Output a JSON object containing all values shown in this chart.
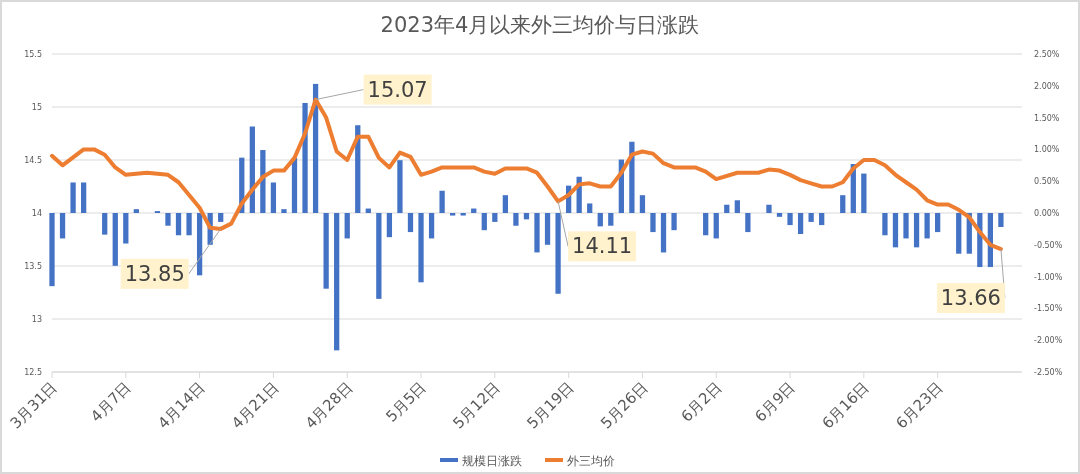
{
  "chart_data": {
    "type": "bar",
    "title": "2023年4月以来外三均价与日涨跌",
    "x": [
      "2023-03-31",
      "2023-04-01",
      "2023-04-02",
      "2023-04-03",
      "2023-04-04",
      "2023-04-05",
      "2023-04-06",
      "2023-04-07",
      "2023-04-08",
      "2023-04-09",
      "2023-04-10",
      "2023-04-11",
      "2023-04-12",
      "2023-04-13",
      "2023-04-14",
      "2023-04-15",
      "2023-04-16",
      "2023-04-17",
      "2023-04-18",
      "2023-04-19",
      "2023-04-20",
      "2023-04-21",
      "2023-04-22",
      "2023-04-23",
      "2023-04-24",
      "2023-04-25",
      "2023-04-26",
      "2023-04-27",
      "2023-04-28",
      "2023-04-29",
      "2023-04-30",
      "2023-05-01",
      "2023-05-02",
      "2023-05-03",
      "2023-05-04",
      "2023-05-05",
      "2023-05-06",
      "2023-05-07",
      "2023-05-08",
      "2023-05-09",
      "2023-05-10",
      "2023-05-11",
      "2023-05-12",
      "2023-05-13",
      "2023-05-14",
      "2023-05-15",
      "2023-05-16",
      "2023-05-17",
      "2023-05-18",
      "2023-05-19",
      "2023-05-20",
      "2023-05-21",
      "2023-05-22",
      "2023-05-23",
      "2023-05-24",
      "2023-05-25",
      "2023-05-26",
      "2023-05-27",
      "2023-05-28",
      "2023-05-29",
      "2023-05-30",
      "2023-05-31",
      "2023-06-01",
      "2023-06-02",
      "2023-06-03",
      "2023-06-04",
      "2023-06-05",
      "2023-06-06",
      "2023-06-07",
      "2023-06-08",
      "2023-06-09",
      "2023-06-10",
      "2023-06-11",
      "2023-06-12",
      "2023-06-13",
      "2023-06-14",
      "2023-06-15",
      "2023-06-16",
      "2023-06-17",
      "2023-06-18",
      "2023-06-19",
      "2023-06-20",
      "2023-06-21",
      "2023-06-22",
      "2023-06-23",
      "2023-06-24",
      "2023-06-25",
      "2023-06-26",
      "2023-06-27",
      "2023-06-28",
      "2023-06-29"
    ],
    "series": [
      {
        "name": "规模日涨跌",
        "color": "#4472c4",
        "axis": "y2",
        "values": [
          -1.15,
          -0.4,
          0.48,
          0.48,
          null,
          -0.34,
          -0.83,
          -0.48,
          0.06,
          null,
          0.03,
          -0.2,
          -0.35,
          -0.35,
          -0.98,
          -0.5,
          -0.14,
          null,
          0.87,
          1.36,
          0.99,
          0.48,
          0.06,
          0.87,
          1.73,
          2.03,
          -1.19,
          -2.16,
          -0.4,
          1.38,
          0.07,
          -1.35,
          -0.38,
          0.83,
          -0.3,
          -1.09,
          -0.4,
          0.35,
          -0.04,
          -0.04,
          0.07,
          -0.27,
          -0.14,
          0.28,
          -0.2,
          -0.1,
          -0.62,
          -0.5,
          -1.27,
          0.43,
          0.57,
          0.15,
          -0.21,
          -0.2,
          0.84,
          1.12,
          0.28,
          -0.3,
          -0.62,
          -0.27,
          null,
          null,
          -0.35,
          -0.4,
          0.13,
          0.2,
          -0.3,
          null,
          0.13,
          -0.06,
          -0.19,
          -0.33,
          -0.14,
          -0.19,
          null,
          0.28,
          0.77,
          0.62,
          null,
          -0.35,
          -0.54,
          -0.4,
          -0.54,
          -0.4,
          -0.3,
          null,
          -0.64,
          -0.64,
          -0.85,
          -0.85,
          -0.22
        ]
      },
      {
        "type": "line",
        "name": "外三均价",
        "color": "#ed7d31",
        "x": [
          "2023-03-31",
          "2023-04-01",
          "2023-04-03",
          "2023-04-04",
          "2023-04-05",
          "2023-04-06",
          "2023-04-07",
          "2023-04-09",
          "2023-04-11",
          "2023-04-12",
          "2023-04-13",
          "2023-04-14",
          "2023-04-15",
          "2023-04-16",
          "2023-04-17",
          "2023-04-18",
          "2023-04-19",
          "2023-04-20",
          "2023-04-21",
          "2023-04-22",
          "2023-04-23",
          "2023-04-24",
          "2023-04-25",
          "2023-04-26",
          "2023-04-27",
          "2023-04-28",
          "2023-04-29",
          "2023-04-30",
          "2023-05-01",
          "2023-05-02",
          "2023-05-03",
          "2023-05-04",
          "2023-05-05",
          "2023-05-06",
          "2023-05-07",
          "2023-05-08",
          "2023-05-10",
          "2023-05-11",
          "2023-05-12",
          "2023-05-13",
          "2023-05-14",
          "2023-05-15",
          "2023-05-16",
          "2023-05-17",
          "2023-05-18",
          "2023-05-19",
          "2023-05-20",
          "2023-05-21",
          "2023-05-22",
          "2023-05-23",
          "2023-05-24",
          "2023-05-25",
          "2023-05-26",
          "2023-05-27",
          "2023-05-28",
          "2023-05-29",
          "2023-05-31",
          "2023-06-01",
          "2023-06-02",
          "2023-06-04",
          "2023-06-06",
          "2023-06-07",
          "2023-06-08",
          "2023-06-09",
          "2023-06-10",
          "2023-06-11",
          "2023-06-12",
          "2023-06-13",
          "2023-06-14",
          "2023-06-15",
          "2023-06-16",
          "2023-06-17",
          "2023-06-18",
          "2023-06-19",
          "2023-06-20",
          "2023-06-21",
          "2023-06-22",
          "2023-06-23",
          "2023-06-24",
          "2023-06-25",
          "2023-06-26",
          "2023-06-27",
          "2023-06-28",
          "2023-06-29"
        ],
        "values": [
          14.54,
          14.45,
          14.6,
          14.6,
          14.55,
          14.43,
          14.36,
          14.38,
          14.36,
          14.29,
          14.17,
          14.05,
          13.86,
          13.85,
          13.9,
          14.09,
          14.22,
          14.34,
          14.4,
          14.4,
          14.52,
          14.75,
          15.07,
          14.9,
          14.58,
          14.5,
          14.72,
          14.72,
          14.52,
          14.43,
          14.57,
          14.53,
          14.36,
          14.39,
          14.43,
          14.43,
          14.43,
          14.39,
          14.37,
          14.42,
          14.42,
          14.42,
          14.38,
          14.25,
          14.11,
          14.17,
          14.27,
          14.28,
          14.25,
          14.25,
          14.38,
          14.55,
          14.58,
          14.56,
          14.47,
          14.43,
          14.43,
          14.39,
          14.32,
          14.38,
          14.38,
          14.41,
          14.4,
          14.36,
          14.31,
          14.28,
          14.25,
          14.25,
          14.29,
          14.42,
          14.5,
          14.5,
          14.45,
          14.36,
          14.29,
          14.22,
          14.12,
          14.08,
          14.08,
          14.03,
          13.96,
          13.82,
          13.7,
          13.66
        ]
      }
    ],
    "xlim": [
      "2023-03-31",
      "2023-07-01"
    ],
    "xticks": [
      {
        "value": "2023-03-31",
        "label": "3月31日"
      },
      {
        "value": "2023-04-07",
        "label": "4月7日"
      },
      {
        "value": "2023-04-14",
        "label": "4月14日"
      },
      {
        "value": "2023-04-21",
        "label": "4月21日"
      },
      {
        "value": "2023-04-28",
        "label": "4月28日"
      },
      {
        "value": "2023-05-05",
        "label": "5月5日"
      },
      {
        "value": "2023-05-12",
        "label": "5月12日"
      },
      {
        "value": "2023-05-19",
        "label": "5月19日"
      },
      {
        "value": "2023-05-26",
        "label": "5月26日"
      },
      {
        "value": "2023-06-02",
        "label": "6月2日"
      },
      {
        "value": "2023-06-09",
        "label": "6月9日"
      },
      {
        "value": "2023-06-16",
        "label": "6月16日"
      },
      {
        "value": "2023-06-23",
        "label": "6月23日"
      }
    ],
    "ylim": [
      12.5,
      15.5
    ],
    "yticks": [
      12.5,
      13,
      13.5,
      14,
      14.5,
      15,
      15.5
    ],
    "y2lim": [
      -2.5,
      2.5
    ],
    "y2ticks": [
      {
        "value": -2.5,
        "label": "-2.50%"
      },
      {
        "value": -2,
        "label": "-2.00%"
      },
      {
        "value": -1.5,
        "label": "-1.50%"
      },
      {
        "value": -1,
        "label": "-1.00%"
      },
      {
        "value": -0.5,
        "label": "-0.50%"
      },
      {
        "value": 0,
        "label": "0.00%"
      },
      {
        "value": 0.5,
        "label": "0.50%"
      },
      {
        "value": 1,
        "label": "1.00%"
      },
      {
        "value": 1.5,
        "label": "1.50%"
      },
      {
        "value": 2,
        "label": "2.00%"
      },
      {
        "value": 2.5,
        "label": "2.50%"
      }
    ],
    "grid": "y",
    "legend": "bottom",
    "annotations": [
      {
        "text": "15.07",
        "x": "2023-04-25",
        "y": 15.07
      },
      {
        "text": "13.85",
        "x": "2023-04-16",
        "y": 13.85
      },
      {
        "text": "14.11",
        "x": "2023-05-18",
        "y": 14.11
      },
      {
        "text": "13.66",
        "x": "2023-06-29",
        "y": 13.66
      }
    ]
  }
}
